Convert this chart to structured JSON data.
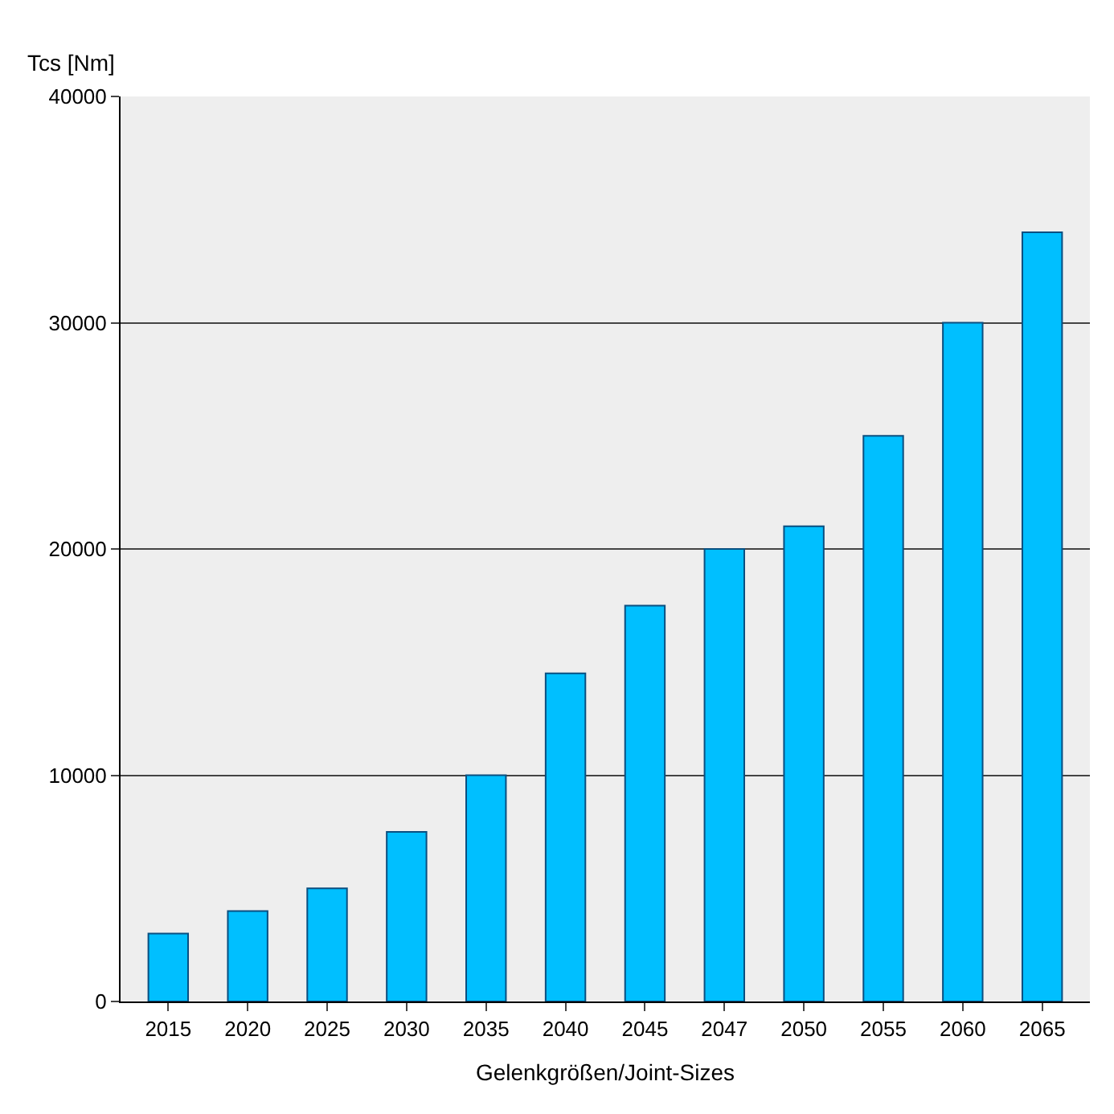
{
  "chart_data": {
    "type": "bar",
    "ylabel": "Tcs [Nm]",
    "xlabel": "Gelenkgrößen/Joint-Sizes",
    "categories": [
      "2015",
      "2020",
      "2025",
      "2030",
      "2035",
      "2040",
      "2045",
      "2047",
      "2050",
      "2055",
      "2060",
      "2065"
    ],
    "values": [
      3000,
      4000,
      5000,
      7500,
      10000,
      14500,
      17500,
      20000,
      21000,
      25000,
      30000,
      34000
    ],
    "color": "#00bfff",
    "ylim": [
      0,
      40000
    ],
    "yticks": [
      0,
      10000,
      20000,
      30000,
      40000
    ],
    "grid": "y"
  }
}
